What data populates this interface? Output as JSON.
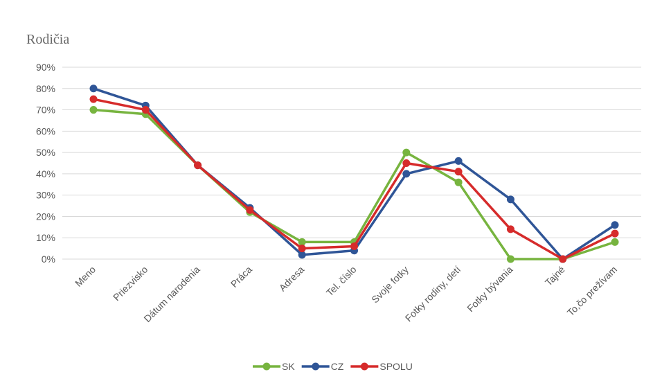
{
  "chart_data": {
    "type": "line",
    "title": "Rodičia",
    "categories": [
      "Meno",
      "Priezvisko",
      "Dátum narodenia",
      "Práca",
      "Adresa",
      "Tel. číslo",
      "Svoje fotky",
      "Fotky rodiny, detí",
      "Fotky bývania",
      "Tajné",
      "To,čo prežívam"
    ],
    "series": [
      {
        "name": "SK",
        "color": "#77b43f",
        "values": [
          70,
          68,
          44,
          22,
          8,
          8,
          50,
          36,
          0,
          0,
          8
        ]
      },
      {
        "name": "CZ",
        "color": "#2f5597",
        "values": [
          80,
          72,
          44,
          24,
          2,
          4,
          40,
          46,
          28,
          0,
          16
        ]
      },
      {
        "name": "SPOLU",
        "color": "#d62b2b",
        "values": [
          75,
          70,
          44,
          23,
          5,
          6,
          45,
          41,
          14,
          0,
          12
        ]
      }
    ],
    "y_ticks": [
      "0%",
      "10%",
      "20%",
      "30%",
      "40%",
      "50%",
      "60%",
      "70%",
      "80%",
      "90%"
    ],
    "ylim": [
      0,
      90
    ],
    "grid": true,
    "legend_position": "bottom-center"
  }
}
